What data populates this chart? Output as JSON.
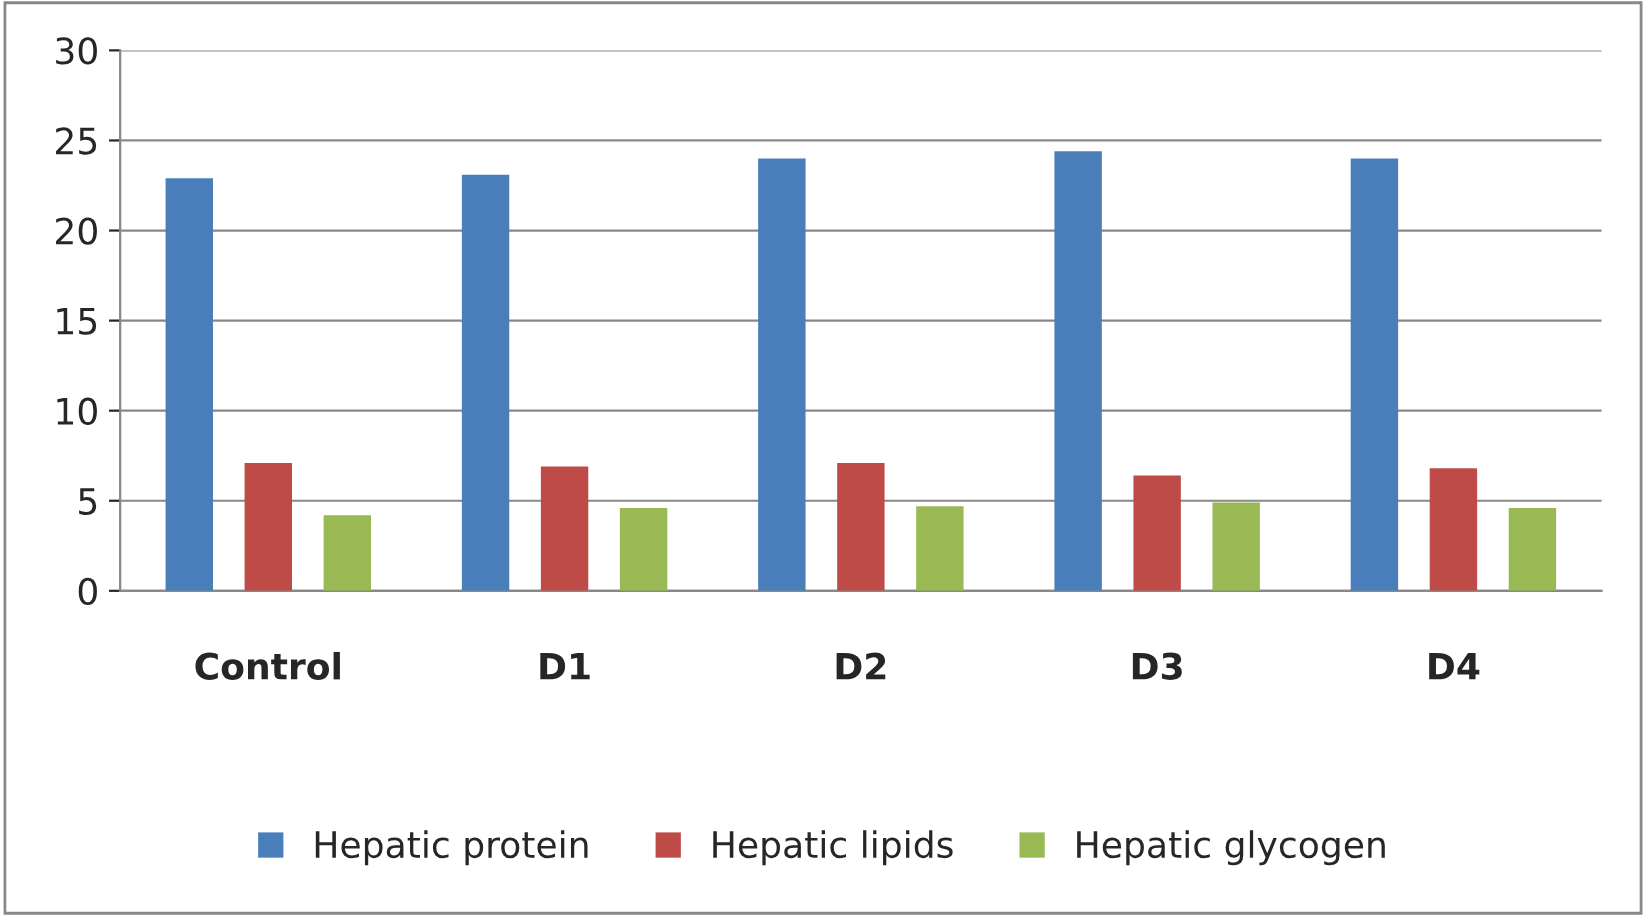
{
  "chart_data": {
    "type": "bar",
    "categories": [
      "Control",
      "D1",
      "D2",
      "D3",
      "D4"
    ],
    "series": [
      {
        "name": "Hepatic protein",
        "color": "#4a7ebb",
        "values": [
          22.9,
          23.1,
          24.0,
          24.4,
          24.0
        ]
      },
      {
        "name": "Hepatic lipids",
        "color": "#be4b48",
        "values": [
          7.1,
          6.9,
          7.1,
          6.4,
          6.8
        ]
      },
      {
        "name": "Hepatic glycogen",
        "color": "#98b954",
        "values": [
          4.2,
          4.6,
          4.7,
          4.9,
          4.6
        ]
      }
    ],
    "ylim": [
      0,
      30
    ],
    "yticks": [
      0,
      5,
      10,
      15,
      20,
      25,
      30
    ],
    "grid": "y",
    "legend": "bottom"
  }
}
